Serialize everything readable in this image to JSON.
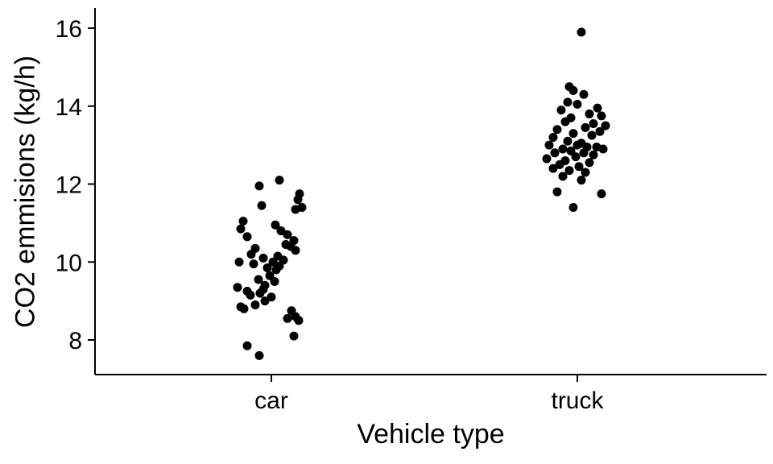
{
  "chart_data": {
    "type": "scatter",
    "subtype": "jittered-strip-plot",
    "title": "",
    "xlabel": "Vehicle type",
    "ylabel": "CO2 emmisions (kg/h)",
    "categories": [
      "car",
      "truck"
    ],
    "yticks": [
      8,
      10,
      12,
      14,
      16
    ],
    "ytick_labels": [
      "8",
      "10",
      "12",
      "14",
      "16"
    ],
    "ylim": [
      7.1,
      16.5
    ],
    "grid": false,
    "legend_position": "none",
    "point_color": "#000000",
    "axis_color": "#000000",
    "background_color": "#ffffff",
    "series": [
      {
        "name": "car",
        "points": [
          [
            10,
            12.1
          ],
          [
            -15,
            11.95
          ],
          [
            35,
            11.75
          ],
          [
            33,
            11.6
          ],
          [
            -12,
            11.45
          ],
          [
            38,
            11.4
          ],
          [
            30,
            11.35
          ],
          [
            -35,
            11.05
          ],
          [
            5,
            10.95
          ],
          [
            -38,
            10.85
          ],
          [
            12,
            10.8
          ],
          [
            20,
            10.7
          ],
          [
            -30,
            10.65
          ],
          [
            28,
            10.55
          ],
          [
            18,
            10.45
          ],
          [
            24,
            10.4
          ],
          [
            -20,
            10.35
          ],
          [
            30,
            10.3
          ],
          [
            -25,
            10.2
          ],
          [
            8,
            10.15
          ],
          [
            -10,
            10.1
          ],
          [
            15,
            10.05
          ],
          [
            -40,
            10.0
          ],
          [
            2,
            10.0
          ],
          [
            -22,
            9.95
          ],
          [
            10,
            9.9
          ],
          [
            -5,
            9.85
          ],
          [
            6,
            9.8
          ],
          [
            -2,
            9.65
          ],
          [
            -16,
            9.55
          ],
          [
            4,
            9.5
          ],
          [
            -8,
            9.4
          ],
          [
            -42,
            9.35
          ],
          [
            -10,
            9.3
          ],
          [
            -30,
            9.25
          ],
          [
            -14,
            9.2
          ],
          [
            -26,
            9.15
          ],
          [
            0,
            9.1
          ],
          [
            -8,
            9.0
          ],
          [
            -20,
            8.9
          ],
          [
            -38,
            8.85
          ],
          [
            -34,
            8.8
          ],
          [
            25,
            8.75
          ],
          [
            30,
            8.6
          ],
          [
            20,
            8.55
          ],
          [
            34,
            8.5
          ],
          [
            28,
            8.1
          ],
          [
            -30,
            7.85
          ],
          [
            -15,
            7.6
          ]
        ]
      },
      {
        "name": "truck",
        "points": [
          [
            5,
            15.9
          ],
          [
            -10,
            14.5
          ],
          [
            -5,
            14.4
          ],
          [
            8,
            14.3
          ],
          [
            -12,
            14.1
          ],
          [
            0,
            14.05
          ],
          [
            25,
            13.95
          ],
          [
            -20,
            13.9
          ],
          [
            15,
            13.8
          ],
          [
            30,
            13.75
          ],
          [
            -8,
            13.7
          ],
          [
            -15,
            13.6
          ],
          [
            20,
            13.55
          ],
          [
            35,
            13.5
          ],
          [
            10,
            13.45
          ],
          [
            -25,
            13.4
          ],
          [
            28,
            13.35
          ],
          [
            -5,
            13.3
          ],
          [
            18,
            13.25
          ],
          [
            -30,
            13.2
          ],
          [
            -12,
            13.1
          ],
          [
            5,
            13.05
          ],
          [
            -35,
            13.0
          ],
          [
            0,
            13.0
          ],
          [
            12,
            12.95
          ],
          [
            24,
            12.95
          ],
          [
            -18,
            12.9
          ],
          [
            32,
            12.9
          ],
          [
            -8,
            12.85
          ],
          [
            -28,
            12.8
          ],
          [
            8,
            12.8
          ],
          [
            20,
            12.75
          ],
          [
            -2,
            12.7
          ],
          [
            -38,
            12.65
          ],
          [
            -15,
            12.6
          ],
          [
            15,
            12.55
          ],
          [
            -22,
            12.5
          ],
          [
            2,
            12.45
          ],
          [
            -30,
            12.4
          ],
          [
            -10,
            12.35
          ],
          [
            10,
            12.3
          ],
          [
            -18,
            12.2
          ],
          [
            5,
            12.1
          ],
          [
            -25,
            11.8
          ],
          [
            30,
            11.75
          ],
          [
            -5,
            11.4
          ]
        ]
      }
    ]
  }
}
